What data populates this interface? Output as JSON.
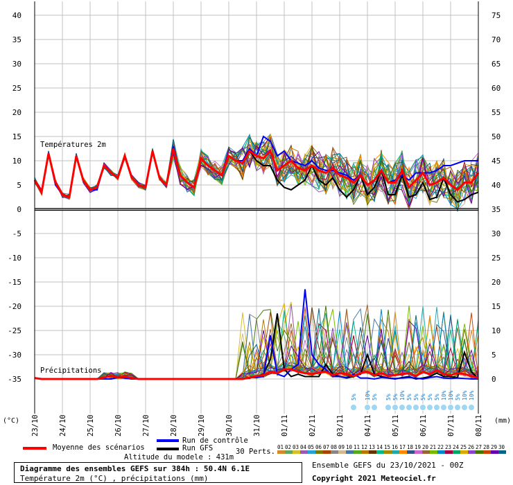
{
  "chart_data": {
    "type": "line",
    "title": "Diagramme des ensembles GEFS sur 384h : 50.4N 6.1E",
    "subtitle": "Température 2m (°C) , précipitations (mm)",
    "temp_label": "Températures 2m",
    "precip_label": "Précipitations",
    "left_unit": "(°C)",
    "right_unit": "(mm)",
    "left_ticks": [
      40,
      35,
      30,
      25,
      20,
      15,
      10,
      5,
      0,
      -5,
      -10,
      -15,
      -20,
      -25,
      -30,
      -35
    ],
    "right_ticks": [
      75,
      70,
      65,
      60,
      55,
      50,
      45,
      40,
      35,
      30,
      25,
      20,
      15,
      10,
      5,
      0
    ],
    "ylim": [
      -35,
      40
    ],
    "x_labels": [
      "23/10",
      "24/10",
      "25/10",
      "26/10",
      "27/10",
      "28/10",
      "29/10",
      "30/10",
      "31/10",
      "01/11",
      "02/11",
      "03/11",
      "04/11",
      "05/11",
      "06/11",
      "07/11",
      "08/11"
    ],
    "series": [
      {
        "name": "Moyenne des scénarios",
        "color": "#ff0000",
        "temperature": [
          6,
          3.5,
          11.5,
          5.5,
          3,
          2.5,
          11,
          6,
          4,
          4.5,
          9,
          7.5,
          6.5,
          11,
          6.5,
          5,
          4.5,
          12,
          6.5,
          5,
          12.5,
          7,
          5.5,
          4.5,
          10.5,
          9,
          8,
          7,
          11,
          10,
          9.5,
          12,
          11,
          10.5,
          12,
          8,
          9,
          10,
          8.5,
          8,
          9,
          8,
          7.5,
          8.5,
          7,
          6.5,
          5.5,
          7,
          5,
          6,
          8,
          5.5,
          5.5,
          8,
          4.5,
          6,
          7.5,
          5,
          5.5,
          6.5,
          5,
          4,
          5.5,
          5.5,
          7.5
        ],
        "precipitation": [
          0.2,
          0,
          0,
          0,
          0,
          0,
          0,
          0,
          0,
          0,
          0.3,
          0.6,
          0.4,
          0.5,
          0.2,
          0,
          0,
          0,
          0,
          0,
          0,
          0,
          0,
          0,
          0,
          0,
          0,
          0,
          0,
          0,
          0,
          0.3,
          0.6,
          0.8,
          1.5,
          1.2,
          2,
          2,
          1.5,
          1.2,
          1,
          1.3,
          1.5,
          0.8,
          1.2,
          1,
          0.6,
          1.2,
          1.5,
          0.8,
          1.2,
          0.6,
          0.8,
          1,
          1.2,
          0.6,
          1.5,
          1,
          1.8,
          1,
          0.8,
          1.2,
          1,
          0.6,
          0.2
        ]
      },
      {
        "name": "Run de contrôle",
        "color": "#0000ff",
        "temperature": [
          6,
          3.5,
          11.5,
          5,
          3,
          2.5,
          11,
          6,
          4,
          4,
          9,
          7.5,
          6.5,
          11,
          6.5,
          5,
          4.5,
          12,
          6.5,
          5,
          13,
          7,
          5.5,
          4.5,
          10.5,
          9,
          8,
          7,
          11,
          10,
          10,
          12.5,
          11,
          15,
          14,
          11,
          12,
          10,
          9.5,
          9,
          10,
          8.5,
          8,
          8,
          7.5,
          7,
          6,
          7,
          5,
          6,
          8,
          5.5,
          6,
          7,
          6,
          7.5,
          7.5,
          7.5,
          8,
          9,
          9,
          9.5,
          10,
          10,
          10
        ],
        "precipitation": [
          0.2,
          0,
          0,
          0,
          0,
          0,
          0,
          0,
          0,
          0,
          0,
          0,
          0.3,
          0.2,
          0,
          0,
          0,
          0,
          0,
          0,
          0,
          0,
          0,
          0,
          0,
          0,
          0,
          0,
          0,
          0,
          0,
          0.3,
          0.3,
          0.5,
          9,
          1,
          0.5,
          2,
          3,
          18.5,
          5,
          3,
          2,
          0.5,
          0.5,
          0.3,
          1,
          0.2,
          0.2,
          0,
          0.3,
          0.2,
          0.1,
          0.2,
          0.3,
          0.2,
          0,
          0.3,
          0.5,
          0.2,
          0.1,
          0.2,
          0.1,
          0,
          0
        ]
      },
      {
        "name": "Run GFS",
        "color": "#000000",
        "temperature": [
          6,
          3.5,
          11.5,
          5.5,
          3,
          2.5,
          11,
          6,
          4,
          4.5,
          9,
          7.5,
          6.5,
          11,
          6.5,
          5,
          4.5,
          12,
          6.5,
          5,
          12.5,
          7,
          5.5,
          4.5,
          10.5,
          9,
          8,
          7,
          11,
          10,
          9.5,
          12,
          10,
          9,
          9,
          6,
          4.5,
          4,
          5,
          6,
          9,
          6,
          5,
          6.5,
          4,
          2.5,
          4,
          7,
          3,
          4.5,
          8,
          3,
          3,
          7,
          2.5,
          3,
          5.5,
          2,
          2.5,
          6.5,
          3,
          1.5,
          2,
          3,
          3.5
        ],
        "precipitation": [
          0.2,
          0,
          0,
          0,
          0,
          0,
          0,
          0,
          0,
          0,
          0,
          0,
          0.3,
          0.3,
          0,
          0,
          0,
          0,
          0,
          0,
          0,
          0,
          0,
          0,
          0,
          0,
          0,
          0,
          0,
          0,
          0,
          0.2,
          0.6,
          1,
          4,
          13.5,
          2,
          0.5,
          1,
          0.5,
          0.5,
          0.5,
          3,
          1,
          0.5,
          0.2,
          0.5,
          1,
          5,
          1,
          0.5,
          0.2,
          0,
          0.3,
          0.5,
          0,
          0.2,
          0.5,
          1.2,
          0.5,
          0.5,
          0.3,
          5.5,
          1.5,
          0
        ]
      }
    ],
    "snow_markers": [
      {
        "text": "5%",
        "day": 11.5
      },
      {
        "text": "10%",
        "day": 12.0
      },
      {
        "text": "5%",
        "day": 12.25
      },
      {
        "text": "5%",
        "day": 12.75
      },
      {
        "text": "5%",
        "day": 13.0
      },
      {
        "text": "10%",
        "day": 13.25
      },
      {
        "text": "5%",
        "day": 13.5
      },
      {
        "text": "5%",
        "day": 13.75
      },
      {
        "text": "5%",
        "day": 14.0
      },
      {
        "text": "5%",
        "day": 14.25
      },
      {
        "text": "5%",
        "day": 14.5
      },
      {
        "text": "10%",
        "day": 14.75
      },
      {
        "text": "10%",
        "day": 15.0
      },
      {
        "text": "5%",
        "day": 15.25
      },
      {
        "text": "10%",
        "day": 15.5
      },
      {
        "text": "10%",
        "day": 15.75
      }
    ],
    "perturbation_labels": [
      "01",
      "02",
      "03",
      "04",
      "05",
      "06",
      "07",
      "08",
      "09",
      "10",
      "11",
      "12",
      "13",
      "14",
      "15",
      "16",
      "17",
      "18",
      "19",
      "20",
      "21",
      "22",
      "23",
      "24",
      "25",
      "26",
      "27",
      "28",
      "29",
      "30"
    ],
    "perturbation_colors": [
      "#d48a2a",
      "#5fa85f",
      "#d4c02a",
      "#9b59b6",
      "#2aa1d4",
      "#7a7a00",
      "#aa4400",
      "#888888",
      "#d4b890",
      "#4477aa",
      "#55aa22",
      "#bb7700",
      "#663300",
      "#00bb88",
      "#aa8800",
      "#22aaaa",
      "#ff8800",
      "#335588",
      "#cc66cc",
      "#996633",
      "#77bb00",
      "#0088cc",
      "#aa0044",
      "#00aa66",
      "#ddaa00",
      "#8844cc",
      "#447700",
      "#cc4400",
      "#6600aa",
      "#006688"
    ]
  },
  "legend": {
    "mean_label": "Moyenne des scénarios",
    "control_label": "Run de contrôle",
    "gfs_label": "Run GFS",
    "altitude": "Altitude du modele : 431m",
    "pert_label": "30 Perts."
  },
  "footer": {
    "ensemble_info": "Ensemble GEFS du 23/10/2021 - 00Z",
    "copyright": "Copyright 2021 Meteociel.fr"
  },
  "colors": {
    "mean": "#ff0000",
    "control": "#0000ff",
    "gfs": "#000000",
    "grid": "#c0c0c0",
    "snow": "#9fd7f2"
  }
}
